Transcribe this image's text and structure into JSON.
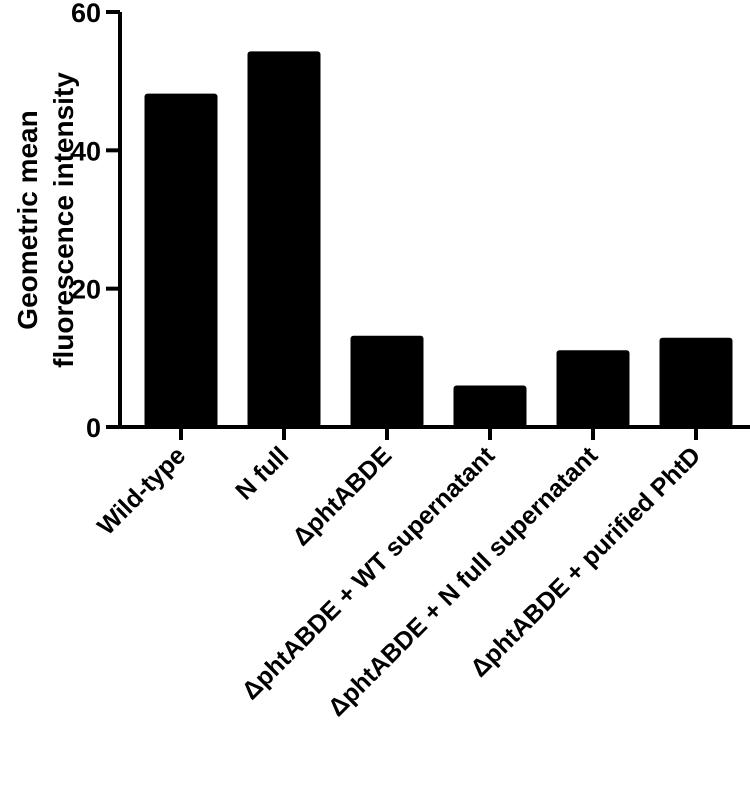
{
  "chart_data": {
    "type": "bar",
    "title": "",
    "xlabel": "",
    "ylabel_lines": [
      "Geometric mean",
      "fluorescence intensity"
    ],
    "categories": [
      "Wild-type",
      "N full",
      "ΔphtABDE",
      "ΔphtABDE + WT supernatant",
      "ΔphtABDE + N full supernatant",
      "ΔphtABDE + purified PhtD"
    ],
    "values": [
      48.2,
      54.3,
      13.2,
      6.0,
      11.1,
      12.9
    ],
    "ylim": [
      0,
      60
    ],
    "yticks": [
      0,
      20,
      40,
      60
    ],
    "bar_color": "#000000",
    "axis_color": "#000000",
    "grid": false,
    "legend": "none"
  }
}
